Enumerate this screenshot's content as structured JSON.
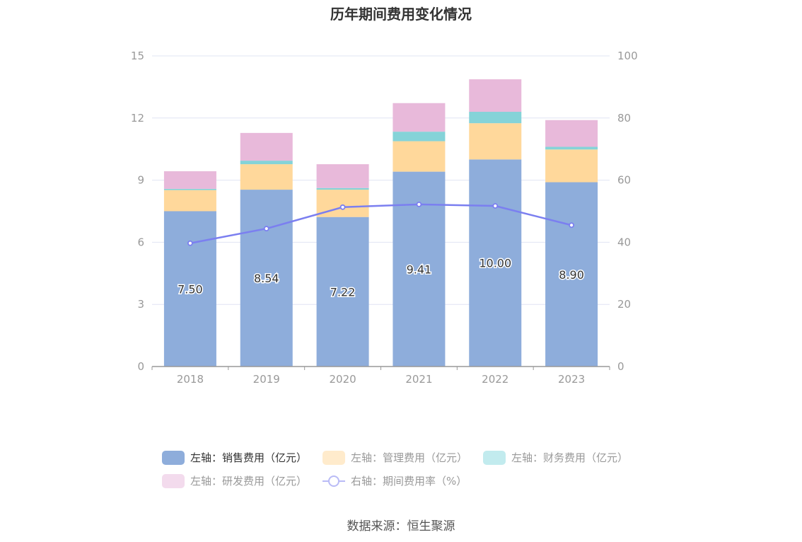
{
  "chart_data": {
    "type": "bar",
    "title": "历年期间费用变化情况",
    "categories": [
      "2018",
      "2019",
      "2020",
      "2021",
      "2022",
      "2023"
    ],
    "stacked": true,
    "y_left": {
      "min": 0,
      "max": 15,
      "ticks": [
        0,
        3,
        6,
        9,
        12,
        15
      ]
    },
    "y_right": {
      "min": 0,
      "max": 100,
      "ticks": [
        0,
        20,
        40,
        60,
        80,
        100
      ]
    },
    "grid": true,
    "series": [
      {
        "name": "左轴：销售费用（亿元）",
        "type": "bar",
        "axis": "left",
        "color": "#8eaddb",
        "values": [
          7.5,
          8.54,
          7.22,
          9.41,
          10.0,
          8.9
        ],
        "labels": [
          "7.50",
          "8.54",
          "7.22",
          "9.41",
          "10.00",
          "8.90"
        ]
      },
      {
        "name": "左轴：管理费用（亿元）",
        "type": "bar",
        "axis": "left",
        "color": "#ffd89b",
        "legend_color": "#ffebcc",
        "values": [
          1.02,
          1.23,
          1.32,
          1.47,
          1.75,
          1.58
        ]
      },
      {
        "name": "左轴：财务费用（亿元）",
        "type": "bar",
        "axis": "left",
        "color": "#85d3d8",
        "legend_color": "#c2ebee",
        "values": [
          0.06,
          0.17,
          0.08,
          0.46,
          0.55,
          0.13
        ]
      },
      {
        "name": "左轴：研发费用（亿元）",
        "type": "bar",
        "axis": "left",
        "color": "#e8b9da",
        "legend_color": "#f3dbed",
        "values": [
          0.85,
          1.34,
          1.15,
          1.38,
          1.57,
          1.29
        ]
      },
      {
        "name": "右轴：期间费用率（%）",
        "type": "line",
        "axis": "right",
        "color": "#7b7ff0",
        "values": [
          39.7,
          44.4,
          51.3,
          52.2,
          51.7,
          45.5
        ]
      }
    ],
    "legend_position": "bottom"
  },
  "source_text": "数据来源：恒生聚源"
}
